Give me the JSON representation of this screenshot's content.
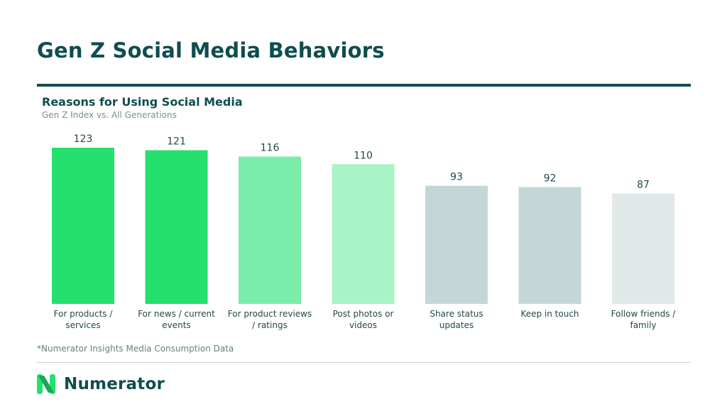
{
  "header": {
    "title": "Gen Z Social Media Behaviors"
  },
  "chart_data": {
    "type": "bar",
    "title": "Reasons for Using Social Media",
    "subtitle": "Gen Z Index vs. All Generations",
    "categories": [
      [
        "For products /",
        "services"
      ],
      [
        "For news / current",
        "events"
      ],
      [
        "For product reviews",
        "/ ratings"
      ],
      [
        "Post photos or",
        "videos"
      ],
      [
        "Share status",
        "updates"
      ],
      [
        "Keep in touch"
      ],
      [
        "Follow friends /",
        "family"
      ]
    ],
    "values": [
      123,
      121,
      116,
      110,
      93,
      92,
      87
    ],
    "bar_colors": [
      "#26e06e",
      "#26e06e",
      "#7aedaa",
      "#a9f3c7",
      "#c3d7d7",
      "#c3d7d7",
      "#e0e8e8"
    ],
    "value_label_color": "#244848",
    "category_label_color": "#244848",
    "ylim": [
      0,
      123
    ],
    "xlabel": "",
    "ylabel": "",
    "data_labels": true,
    "grid": false
  },
  "footer": {
    "footnote": "*Numerator Insights Media Consumption Data",
    "brand_name": "Numerator",
    "brand_icon": "numerator-logo-icon"
  },
  "colors": {
    "brand_dark": "#0f4d4f",
    "brand_green": "#26e06e"
  }
}
